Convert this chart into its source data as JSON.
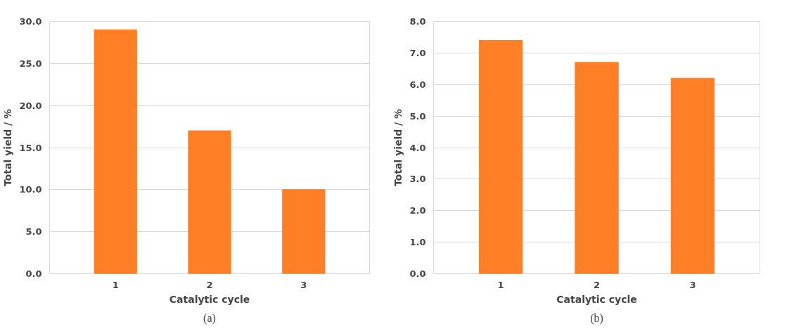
{
  "chart_data": [
    {
      "type": "bar",
      "categories": [
        "1",
        "2",
        "3"
      ],
      "values": [
        29.0,
        17.0,
        10.0
      ],
      "color": "#ff7f27",
      "xlabel": "Catalytic cycle",
      "ylabel": "Total yield / %",
      "ylim": [
        0,
        30
      ],
      "yticks": [
        {
          "value": 0,
          "label": "0.0"
        },
        {
          "value": 5,
          "label": "5.0"
        },
        {
          "value": 10,
          "label": "10.0"
        },
        {
          "value": 15,
          "label": "15.0"
        },
        {
          "value": 20,
          "label": "20.0"
        },
        {
          "value": 25,
          "label": "25.0"
        },
        {
          "value": 30,
          "label": "30.0"
        }
      ],
      "grid": "y",
      "annotations": [
        "(a)"
      ]
    },
    {
      "type": "bar",
      "categories": [
        "1",
        "2",
        "3"
      ],
      "values": [
        7.4,
        6.7,
        6.2
      ],
      "color": "#ff7f27",
      "xlabel": "Catalytic cycle",
      "ylabel": "Total yield / %",
      "ylim": [
        0,
        8
      ],
      "yticks": [
        {
          "value": 0,
          "label": "0.0"
        },
        {
          "value": 1,
          "label": "1.0"
        },
        {
          "value": 2,
          "label": "2.0"
        },
        {
          "value": 3,
          "label": "3.0"
        },
        {
          "value": 4,
          "label": "4.0"
        },
        {
          "value": 5,
          "label": "5.0"
        },
        {
          "value": 6,
          "label": "6.0"
        },
        {
          "value": 7,
          "label": "7.0"
        },
        {
          "value": 8,
          "label": "8.0"
        }
      ],
      "grid": "y",
      "annotations": [
        "(b)"
      ]
    }
  ]
}
